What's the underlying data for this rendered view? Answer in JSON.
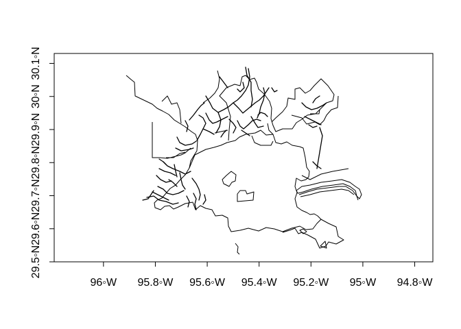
{
  "map": {
    "type": "map",
    "projection": "longlat",
    "xlim": [
      -96.19,
      -94.73
    ],
    "ylim": [
      29.5,
      30.13
    ],
    "x_ticks": [
      {
        "value": -96.0,
        "label": "96◦W"
      },
      {
        "value": -95.8,
        "label": "95.8◦W"
      },
      {
        "value": -95.6,
        "label": "95.6◦W"
      },
      {
        "value": -95.4,
        "label": "95.4◦W"
      },
      {
        "value": -95.2,
        "label": "95.2◦W"
      },
      {
        "value": -95.0,
        "label": "95◦W"
      },
      {
        "value": -94.8,
        "label": "94.8◦W"
      }
    ],
    "y_ticks": [
      {
        "value": 29.5,
        "label": "29.5◦N"
      },
      {
        "value": 29.6,
        "label": "29.6◦N"
      },
      {
        "value": 29.7,
        "label": "29.7◦N"
      },
      {
        "value": 29.8,
        "label": "29.8◦N"
      },
      {
        "value": 29.9,
        "label": "29.9◦N"
      },
      {
        "value": 30.0,
        "label": "30◦N"
      },
      {
        "value": 30.1,
        "label": "30.1◦N"
      }
    ],
    "grid": false,
    "line_color": "#000000"
  }
}
